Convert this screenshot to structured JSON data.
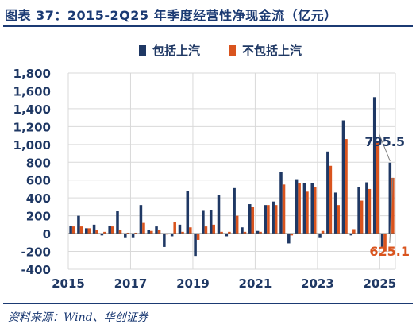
{
  "header": {
    "title": "图表 37：2015-2Q25 年季度经营性净现金流（亿元）"
  },
  "footer": {
    "source": "资料来源：Wind、华创证券"
  },
  "chart_data": {
    "type": "bar",
    "title": "图表 37：2015-2Q25 年季度经营性净现金流（亿元）",
    "ylim": [
      -400,
      1800
    ],
    "yticks": [
      -400,
      -200,
      0,
      200,
      400,
      600,
      800,
      1000,
      1200,
      1400,
      1600,
      1800
    ],
    "ytick_labels": [
      "-400",
      "-200",
      "0",
      "200",
      "400",
      "600",
      "800",
      "1,000",
      "1,200",
      "1,400",
      "1,600",
      "1,800"
    ],
    "x_tick_labels": [
      "2015",
      "2017",
      "2019",
      "2021",
      "2023",
      "2025"
    ],
    "x_tick_positions": [
      0,
      8,
      16,
      24,
      32,
      40
    ],
    "grid": true,
    "legend": "top",
    "colors": {
      "series1": "#1f3864",
      "series2": "#d9541e",
      "grid": "#d9d9d9",
      "axis": "#595959"
    },
    "categories": [
      "2015Q1",
      "2015Q2",
      "2015Q3",
      "2015Q4",
      "2016Q1",
      "2016Q2",
      "2016Q3",
      "2016Q4",
      "2017Q1",
      "2017Q2",
      "2017Q3",
      "2017Q4",
      "2018Q1",
      "2018Q2",
      "2018Q3",
      "2018Q4",
      "2019Q1",
      "2019Q2",
      "2019Q3",
      "2019Q4",
      "2020Q1",
      "2020Q2",
      "2020Q3",
      "2020Q4",
      "2021Q1",
      "2021Q2",
      "2021Q3",
      "2021Q4",
      "2022Q1",
      "2022Q2",
      "2022Q3",
      "2022Q4",
      "2023Q1",
      "2023Q2",
      "2023Q3",
      "2023Q4",
      "2024Q1",
      "2024Q2",
      "2024Q3",
      "2024Q4",
      "2025Q1",
      "2025Q2"
    ],
    "series": [
      {
        "name": "包括上汽",
        "values": [
          90,
          200,
          60,
          100,
          -20,
          90,
          250,
          -50,
          -50,
          320,
          40,
          80,
          -150,
          -30,
          100,
          480,
          -250,
          255,
          260,
          430,
          -30,
          510,
          70,
          330,
          30,
          320,
          360,
          690,
          -110,
          610,
          570,
          570,
          -50,
          920,
          460,
          1270,
          -20,
          520,
          575,
          1530,
          -150,
          795.5
        ]
      },
      {
        "name": "不包括上汽",
        "values": [
          80,
          80,
          60,
          40,
          20,
          80,
          40,
          10,
          10,
          120,
          30,
          40,
          -10,
          130,
          20,
          70,
          -70,
          80,
          100,
          20,
          20,
          200,
          20,
          300,
          20,
          320,
          320,
          550,
          -20,
          570,
          470,
          520,
          30,
          760,
          320,
          1060,
          50,
          370,
          500,
          1020,
          -200,
          625.1
        ]
      }
    ],
    "annotations": [
      {
        "label": "795.5",
        "series": 0,
        "category": "2025Q2",
        "value": 795.5
      },
      {
        "label": "625.1",
        "series": 1,
        "category": "2025Q2",
        "value": 625.1
      }
    ]
  }
}
